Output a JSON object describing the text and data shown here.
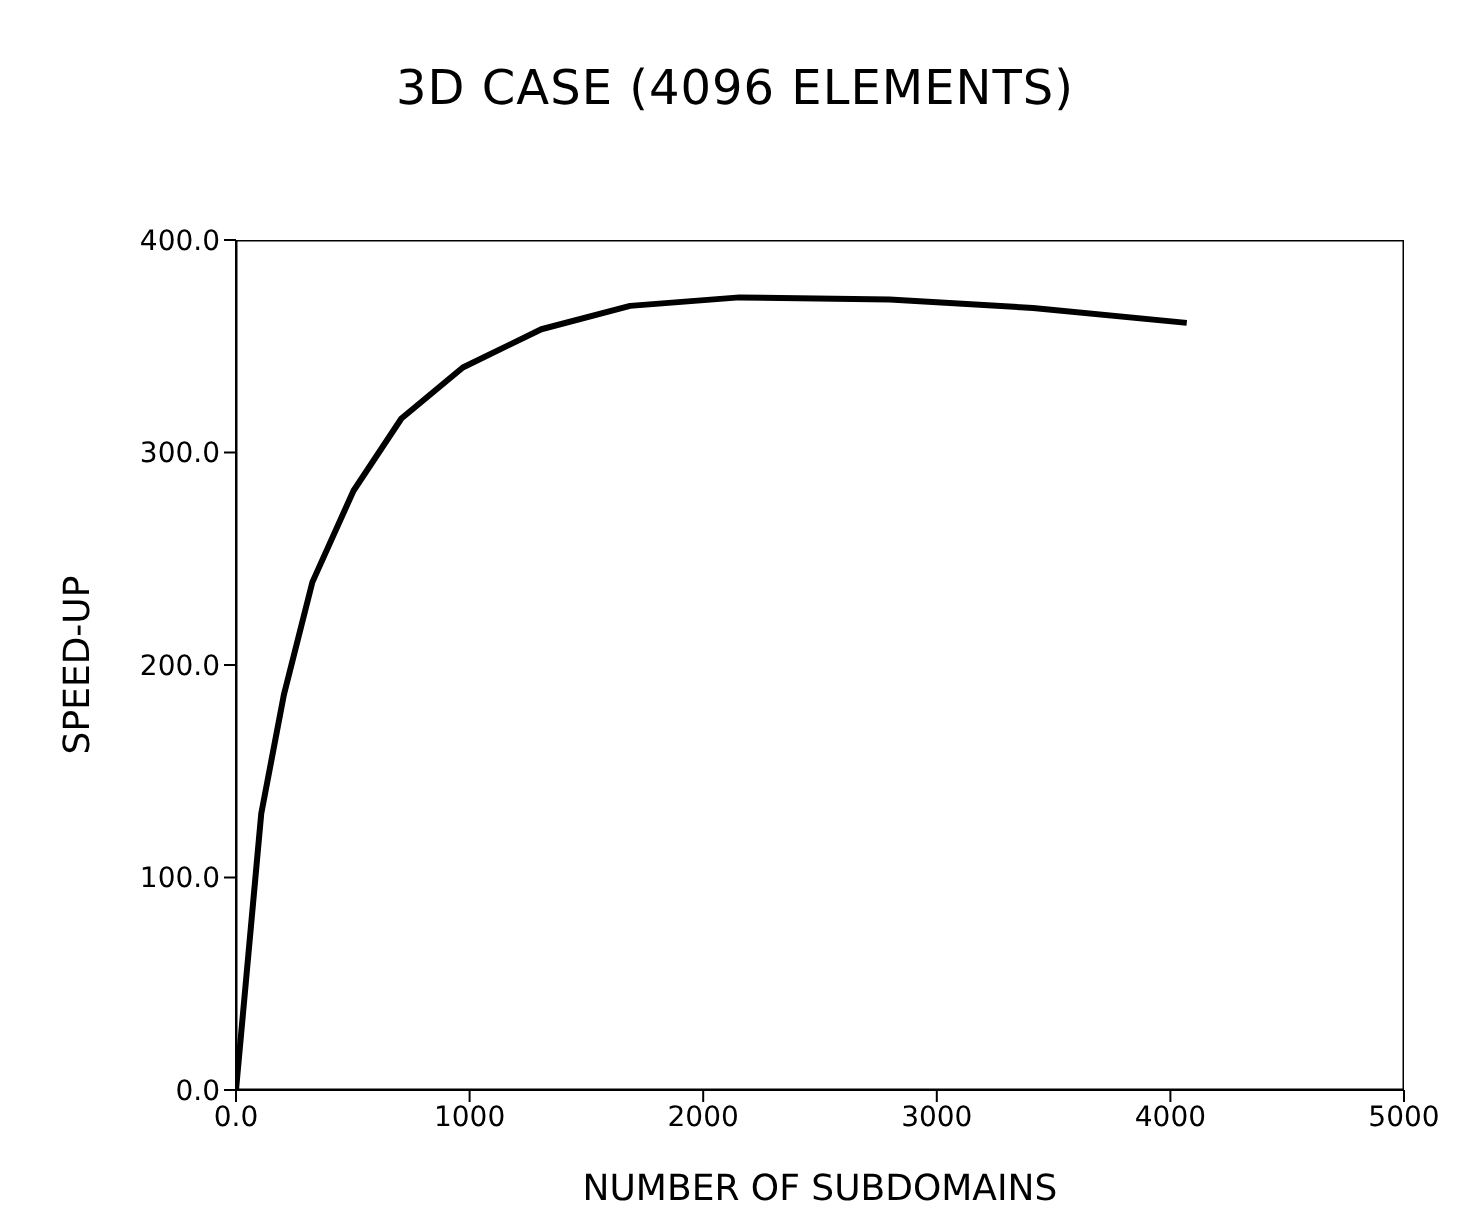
{
  "chart_data": {
    "type": "line",
    "title": "3D CASE (4096 ELEMENTS)",
    "xlabel": "NUMBER OF SUBDOMAINS",
    "ylabel": "SPEED-UP",
    "x": [
      0,
      108,
      205,
      327,
      503,
      708,
      971,
      1307,
      1687,
      2155,
      2798,
      3412,
      4070
    ],
    "series": [
      {
        "color": "#000000",
        "values": [
          0,
          130,
          186,
          239,
          282,
          316,
          340,
          358,
          369,
          373,
          372,
          368,
          361
        ]
      }
    ],
    "xlim": [
      0,
      5000
    ],
    "xticks": [
      {
        "value": 0,
        "label": "0.0"
      },
      1000,
      2000,
      3000,
      4000,
      5000
    ],
    "ylim": [
      0,
      400
    ],
    "yticks": [
      {
        "value": 0,
        "label": "0.0"
      },
      {
        "value": 100,
        "label": "100.0"
      },
      {
        "value": 200,
        "label": "200.0"
      },
      {
        "value": 300,
        "label": "300.0"
      },
      {
        "value": 400,
        "label": "400.0"
      }
    ],
    "grid": false,
    "legend": false,
    "marker": "none",
    "line_style": "solid"
  }
}
